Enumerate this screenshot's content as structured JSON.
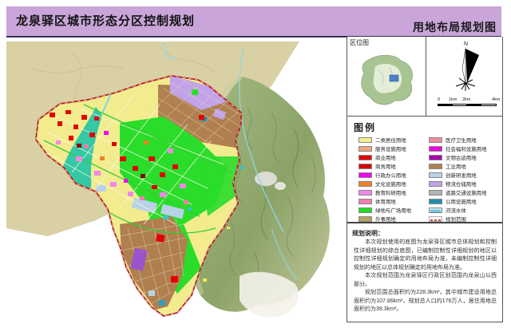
{
  "header": {
    "title": "龙泉驿区城市形态分区控制规划",
    "subtitle": "用地布局规划图"
  },
  "location": {
    "title": "区位图"
  },
  "compass": {
    "north_label": "N"
  },
  "scalebar": {
    "labels": [
      "0",
      "1km",
      "2km",
      "4km"
    ]
  },
  "legend": {
    "title": "图例",
    "left": [
      {
        "label": "二类居住用地",
        "color": "#F5EE8F"
      },
      {
        "label": "服务设施用地",
        "color": "#F2A580"
      },
      {
        "label": "商业用地",
        "color": "#E30000"
      },
      {
        "label": "商务用地",
        "color": "#D40000"
      },
      {
        "label": "行政办公用地",
        "color": "#F000F0"
      },
      {
        "label": "文化设施用地",
        "color": "#EE8022"
      },
      {
        "label": "教育科研用地",
        "color": "#F287E8"
      },
      {
        "label": "体育用地",
        "color": "#F07EB2"
      },
      {
        "label": "绿地与广场用地",
        "color": "#22DD22"
      },
      {
        "label": "外事用地",
        "color": "#B5A45C"
      }
    ],
    "right": [
      {
        "label": "医疗卫生用地",
        "color": "#F08CA0"
      },
      {
        "label": "社会福利设施用地",
        "color": "#EE00DD"
      },
      {
        "label": "文物古迹用地",
        "color": "#AA00AA"
      },
      {
        "label": "工业用地",
        "color": "#B08050"
      },
      {
        "label": "创新研发用地",
        "color": "#BAD2E8"
      },
      {
        "label": "物流仓储用地",
        "color": "#C2A2E8"
      },
      {
        "label": "道路交通设施用地",
        "color": "#B3B3B3"
      },
      {
        "label": "公用设施用地",
        "color": "#1F8FB0"
      },
      {
        "label": "河流水体",
        "color": "#C9EAF2",
        "type": "water"
      },
      {
        "label": "规划范围",
        "color": "#CC3333",
        "type": "dashed"
      }
    ]
  },
  "notes": {
    "title": "规划说明：",
    "paragraphs": [
      "本次规划使用的底图为龙泉驿区城市总体规划和控制性详细规划的综合底图，已编制控制性详细规划的地区以控制性详细规划确定的用地布局为准，未编制控制性详细规划的地区以总体规划确定的用地布局为准。",
      "本次规划范围为龙泉驿区行政区划范围内龙泉山以西部分。",
      "规划范围总面积约为228.3km²，其中城市建设用地总面积约为107.86km²，规划总人口约176万人，居住用地总面积约为39.3km²。"
    ]
  }
}
